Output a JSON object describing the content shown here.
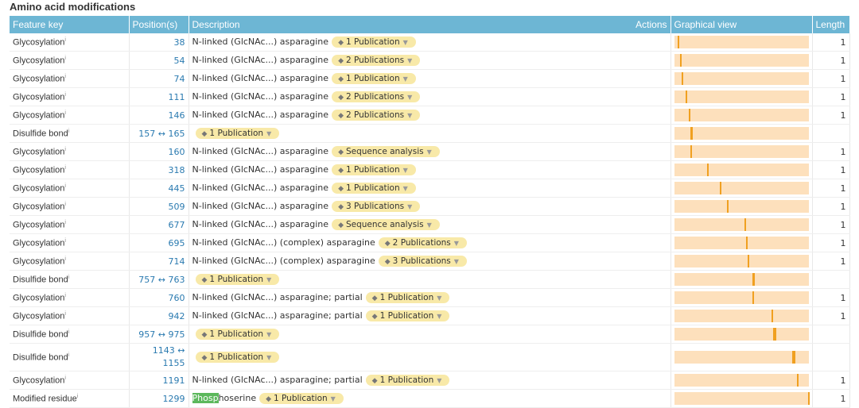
{
  "section_title": "Amino acid modifications",
  "columns": {
    "feature_key": "Feature key",
    "positions": "Position(s)",
    "description": "Description",
    "actions": "Actions",
    "graphical_view": "Graphical view",
    "length": "Length"
  },
  "protein_length": 1300,
  "colors": {
    "header": "#6db6d4",
    "publication_badge": "#f8e9a8",
    "track": "#fde0bc",
    "marker": "#f0a020",
    "highlight": "#5cb85c"
  },
  "rows": [
    {
      "key": "Glycosylation",
      "pos": "38",
      "start": 38,
      "end": 38,
      "desc": "N-linked (GlcNAc...) asparagine",
      "evidence": "1 Publication",
      "length": "1"
    },
    {
      "key": "Glycosylation",
      "pos": "54",
      "start": 54,
      "end": 54,
      "desc": "N-linked (GlcNAc...) asparagine",
      "evidence": "2 Publications",
      "length": "1"
    },
    {
      "key": "Glycosylation",
      "pos": "74",
      "start": 74,
      "end": 74,
      "desc": "N-linked (GlcNAc...) asparagine",
      "evidence": "1 Publication",
      "length": "1"
    },
    {
      "key": "Glycosylation",
      "pos": "111",
      "start": 111,
      "end": 111,
      "desc": "N-linked (GlcNAc...) asparagine",
      "evidence": "2 Publications",
      "length": "1"
    },
    {
      "key": "Glycosylation",
      "pos": "146",
      "start": 146,
      "end": 146,
      "desc": "N-linked (GlcNAc...) asparagine",
      "evidence": "2 Publications",
      "length": "1"
    },
    {
      "key": "Disulfide bond",
      "pos": "157 ↔ 165",
      "start": 157,
      "end": 165,
      "desc": "",
      "evidence": "1 Publication",
      "length": ""
    },
    {
      "key": "Glycosylation",
      "pos": "160",
      "start": 160,
      "end": 160,
      "desc": "N-linked (GlcNAc...) asparagine",
      "evidence": "Sequence analysis",
      "length": "1"
    },
    {
      "key": "Glycosylation",
      "pos": "318",
      "start": 318,
      "end": 318,
      "desc": "N-linked (GlcNAc...) asparagine",
      "evidence": "1 Publication",
      "length": "1"
    },
    {
      "key": "Glycosylation",
      "pos": "445",
      "start": 445,
      "end": 445,
      "desc": "N-linked (GlcNAc...) asparagine",
      "evidence": "1 Publication",
      "length": "1"
    },
    {
      "key": "Glycosylation",
      "pos": "509",
      "start": 509,
      "end": 509,
      "desc": "N-linked (GlcNAc...) asparagine",
      "evidence": "3 Publications",
      "length": "1"
    },
    {
      "key": "Glycosylation",
      "pos": "677",
      "start": 677,
      "end": 677,
      "desc": "N-linked (GlcNAc...) asparagine",
      "evidence": "Sequence analysis",
      "length": "1"
    },
    {
      "key": "Glycosylation",
      "pos": "695",
      "start": 695,
      "end": 695,
      "desc": "N-linked (GlcNAc...) (complex) asparagine",
      "evidence": "2 Publications",
      "length": "1"
    },
    {
      "key": "Glycosylation",
      "pos": "714",
      "start": 714,
      "end": 714,
      "desc": "N-linked (GlcNAc...) (complex) asparagine",
      "evidence": "3 Publications",
      "length": "1"
    },
    {
      "key": "Disulfide bond",
      "pos": "757 ↔ 763",
      "start": 757,
      "end": 763,
      "desc": "",
      "evidence": "1 Publication",
      "length": ""
    },
    {
      "key": "Glycosylation",
      "pos": "760",
      "start": 760,
      "end": 760,
      "desc": "N-linked (GlcNAc...) asparagine; partial",
      "evidence": "1 Publication",
      "length": "1"
    },
    {
      "key": "Glycosylation",
      "pos": "942",
      "start": 942,
      "end": 942,
      "desc": "N-linked (GlcNAc...) asparagine; partial",
      "evidence": "1 Publication",
      "length": "1"
    },
    {
      "key": "Disulfide bond",
      "pos": "957 ↔ 975",
      "start": 957,
      "end": 975,
      "desc": "",
      "evidence": "1 Publication",
      "length": ""
    },
    {
      "key": "Disulfide bond",
      "pos": "1143 ↔ 1155",
      "start": 1143,
      "end": 1155,
      "desc": "",
      "evidence": "1 Publication",
      "length": ""
    },
    {
      "key": "Glycosylation",
      "pos": "1191",
      "start": 1191,
      "end": 1191,
      "desc": "N-linked (GlcNAc...) asparagine; partial",
      "evidence": "1 Publication",
      "length": "1"
    },
    {
      "key": "Modified residue",
      "pos": "1299",
      "start": 1299,
      "end": 1299,
      "desc": "Phosphoserine",
      "desc_highlight": "Phosp",
      "evidence": "1 Publication",
      "length": "1"
    }
  ]
}
